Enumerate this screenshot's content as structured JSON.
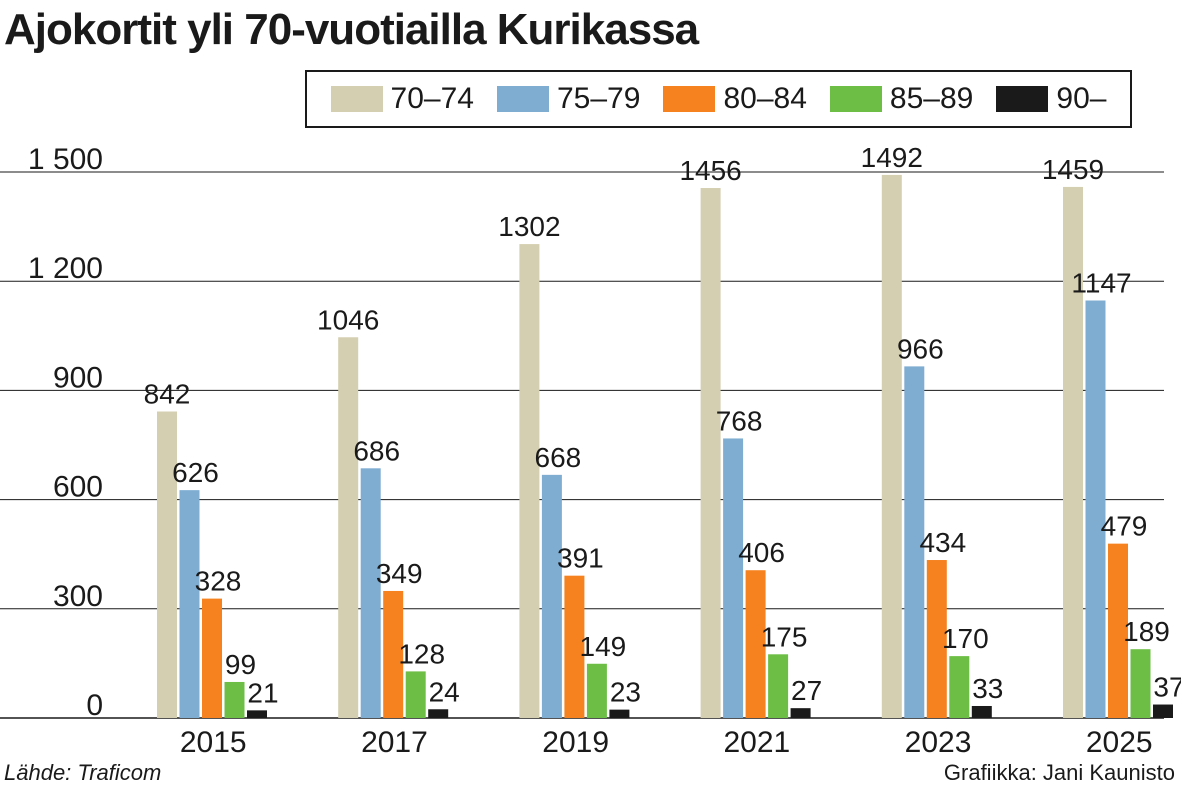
{
  "chart_data": {
    "type": "bar",
    "title": "Ajokortit yli 70-vuotiailla Kurikassa",
    "categories": [
      "2015",
      "2017",
      "2019",
      "2021",
      "2023",
      "2025"
    ],
    "series": [
      {
        "name": "70–74",
        "color": "#d5cfb1",
        "values": [
          842,
          1046,
          1302,
          1456,
          1492,
          1459
        ]
      },
      {
        "name": "75–79",
        "color": "#7fadd2",
        "values": [
          626,
          686,
          668,
          768,
          966,
          1147
        ]
      },
      {
        "name": "80–84",
        "color": "#f5821f",
        "values": [
          328,
          349,
          391,
          406,
          434,
          479
        ]
      },
      {
        "name": "85–89",
        "color": "#6dbe45",
        "values": [
          99,
          128,
          149,
          175,
          170,
          189
        ]
      },
      {
        "name": "90–",
        "color": "#1a1a1a",
        "values": [
          21,
          24,
          23,
          27,
          33,
          37
        ]
      }
    ],
    "ylim": [
      0,
      1500
    ],
    "yticks": [
      0,
      300,
      600,
      900,
      1200,
      1500
    ],
    "ytick_labels": [
      "0",
      "300",
      "600",
      "900",
      "1 200",
      "1 500"
    ],
    "xlabel": "",
    "ylabel": "",
    "grid": true,
    "legend_position": "top-right"
  },
  "footer": {
    "source": "Lähde: Traficom",
    "credit": "Grafiikka: Jani Kaunisto"
  }
}
